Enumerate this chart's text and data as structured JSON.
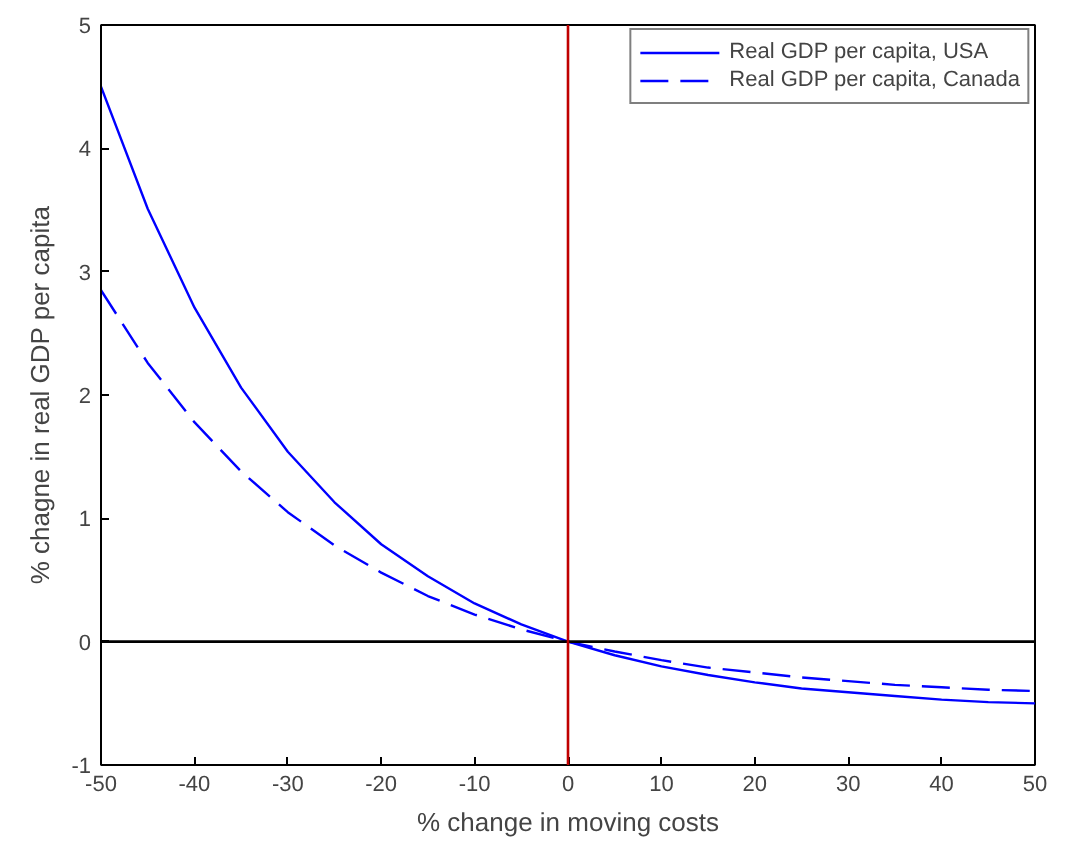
{
  "chart_data": {
    "type": "line",
    "xlabel": "% change in moving costs",
    "ylabel": "% chagne in real GDP per capita",
    "x": [
      -50,
      -45,
      -40,
      -35,
      -30,
      -25,
      -20,
      -15,
      -10,
      -5,
      0,
      5,
      10,
      15,
      20,
      25,
      30,
      35,
      40,
      45,
      50
    ],
    "series": [
      {
        "name": "Real GDP per capita, USA",
        "color": "#0000ff",
        "line_style": "solid",
        "values": [
          4.5,
          3.51,
          2.71,
          2.06,
          1.54,
          1.13,
          0.79,
          0.53,
          0.31,
          0.14,
          0,
          -0.11,
          -0.2,
          -0.27,
          -0.33,
          -0.38,
          -0.41,
          -0.44,
          -0.47,
          -0.49,
          -0.5
        ]
      },
      {
        "name": "Real GDP per capita, Canada",
        "color": "#0000ff",
        "line_style": "dashed",
        "values": [
          2.85,
          2.26,
          1.78,
          1.38,
          1.05,
          0.78,
          0.56,
          0.37,
          0.22,
          0.1,
          0,
          -0.08,
          -0.15,
          -0.21,
          -0.25,
          -0.29,
          -0.32,
          -0.35,
          -0.37,
          -0.39,
          -0.4
        ]
      }
    ],
    "xlim": [
      -50,
      50
    ],
    "xticks": [
      -50,
      -40,
      -30,
      -20,
      -10,
      0,
      10,
      20,
      30,
      40,
      50
    ],
    "ylim": [
      -1,
      5
    ],
    "yticks": [
      -1,
      0,
      1,
      2,
      3,
      4,
      5
    ],
    "ref_lines": [
      {
        "axis": "y",
        "value": 0,
        "color": "#000000"
      },
      {
        "axis": "x",
        "value": 0,
        "color": "#c00000"
      }
    ],
    "grid": false,
    "legend": "top right",
    "marker": "none"
  }
}
